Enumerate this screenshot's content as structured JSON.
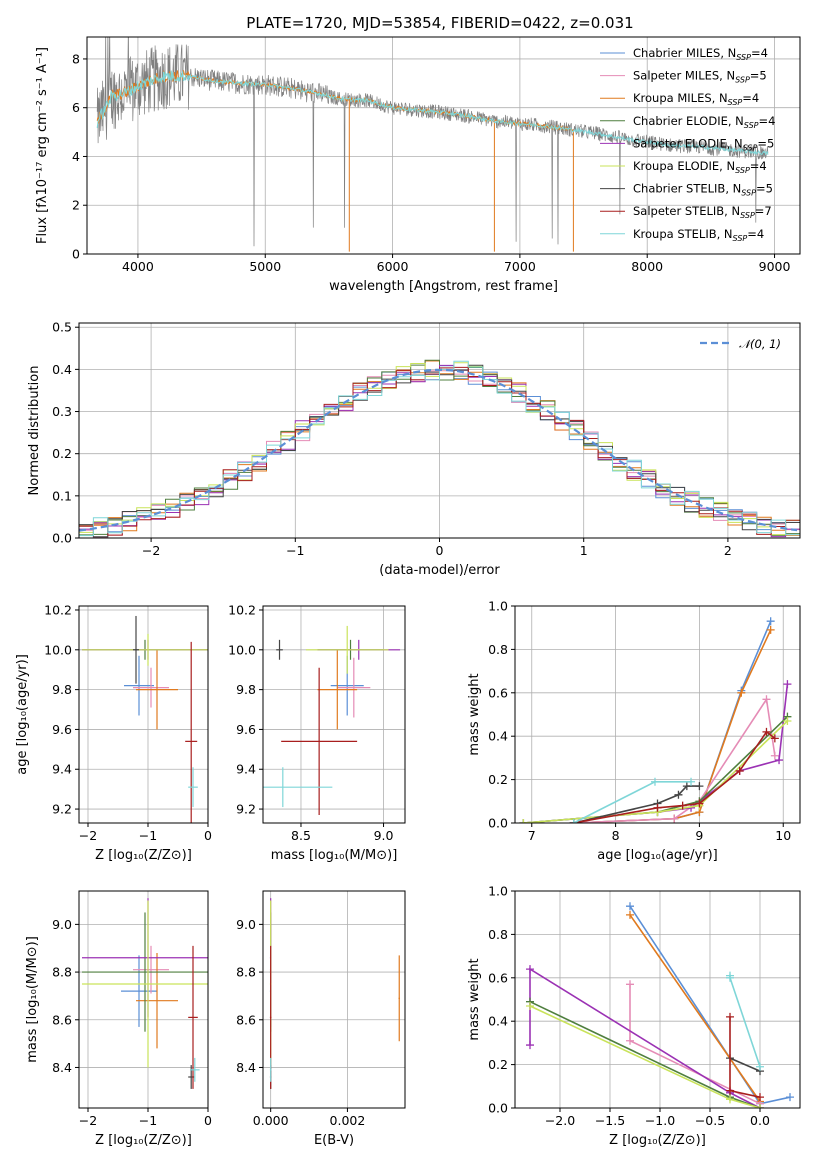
{
  "figure_title": "PLATE=1720, MJD=53854, FIBERID=0422, z=0.031",
  "colors": {
    "Chabrier MILES": "#5b8fd6",
    "Salpeter MILES": "#e58cb6",
    "Kroupa MILES": "#e07a1f",
    "Chabrier ELODIE": "#4f7f3f",
    "Salpeter ELODIE": "#9b32b4",
    "Kroupa ELODIE": "#c9e35a",
    "Chabrier STELIB": "#454545",
    "Salpeter STELIB": "#a81e1e",
    "Kroupa STELIB": "#7fd6d8",
    "data": "#808080",
    "normal": "#5b8fd6"
  },
  "chart_data": [
    {
      "id": "spectrum",
      "type": "line",
      "title": "PLATE=1720, MJD=53854, FIBERID=0422, z=0.031",
      "xlabel": "wavelength [Angstrom, rest frame]",
      "ylabel": "Flux [fλ10⁻¹⁷ erg cm⁻² s⁻¹ A⁻¹]",
      "xlim": [
        3600,
        9200
      ],
      "ylim": [
        0,
        8.9
      ],
      "xticks": [
        4000,
        5000,
        6000,
        7000,
        8000,
        9000
      ],
      "yticks": [
        0,
        2,
        4,
        6,
        8
      ],
      "legend_position": "top-right",
      "legend": [
        {
          "name": "Chabrier MILES",
          "nssp": "4"
        },
        {
          "name": "Salpeter MILES",
          "nssp": "5"
        },
        {
          "name": "Kroupa MILES",
          "nssp": "4"
        },
        {
          "name": "Chabrier ELODIE",
          "nssp": "4"
        },
        {
          "name": "Salpeter ELODIE",
          "nssp": "5"
        },
        {
          "name": "Kroupa ELODIE",
          "nssp": "4"
        },
        {
          "name": "Chabrier STELIB",
          "nssp": "5"
        },
        {
          "name": "Salpeter STELIB",
          "nssp": "7"
        },
        {
          "name": "Kroupa STELIB",
          "nssp": "4"
        }
      ],
      "data_continuum": [
        [
          3680,
          5.4
        ],
        [
          3800,
          6.5
        ],
        [
          3900,
          6.6
        ],
        [
          4000,
          6.9
        ],
        [
          4200,
          7.3
        ],
        [
          4400,
          7.3
        ],
        [
          4600,
          7.1
        ],
        [
          4800,
          7.0
        ],
        [
          5000,
          6.95
        ],
        [
          5200,
          6.8
        ],
        [
          5400,
          6.6
        ],
        [
          5600,
          6.35
        ],
        [
          5800,
          6.3
        ],
        [
          6000,
          6.0
        ],
        [
          6200,
          5.9
        ],
        [
          6400,
          5.8
        ],
        [
          6600,
          5.65
        ],
        [
          6800,
          5.45
        ],
        [
          7000,
          5.35
        ],
        [
          7200,
          5.25
        ],
        [
          7400,
          5.1
        ],
        [
          7600,
          4.95
        ],
        [
          7800,
          4.75
        ],
        [
          8000,
          4.6
        ],
        [
          8200,
          4.45
        ],
        [
          8400,
          4.4
        ],
        [
          8600,
          4.3
        ],
        [
          8800,
          4.2
        ],
        [
          9000,
          4.1
        ]
      ],
      "model_segments": [
        {
          "series": "Kroupa MILES",
          "xrange": [
            3680,
            7420
          ]
        },
        {
          "series": "Kroupa STELIB",
          "xrange": [
            3680,
            8950
          ]
        }
      ]
    },
    {
      "id": "residuals",
      "type": "bar",
      "xlabel": "(data-model)/error",
      "ylabel": "Normed distribution",
      "xlim": [
        -2.5,
        2.5
      ],
      "ylim": [
        0,
        0.51
      ],
      "xticks": [
        -2,
        -1,
        0,
        1,
        2
      ],
      "yticks": [
        0.0,
        0.1,
        0.2,
        0.3,
        0.4,
        0.5
      ],
      "legend": [
        "𝒩(0, 1)"
      ],
      "legend_position": "top-right",
      "bin_width": 0.1
    },
    {
      "id": "age-vs-Z",
      "type": "scatter",
      "xlabel": "Z [log₁₀(Z/Z⊙)]",
      "ylabel": "age  [log₁₀(age/yr)]",
      "xlim": [
        -2.15,
        0.0
      ],
      "ylim": [
        9.13,
        10.22
      ],
      "xticks": [
        -2,
        -1,
        0
      ],
      "yticks": [
        9.2,
        9.4,
        9.6,
        9.8,
        10.0,
        10.2
      ],
      "points": [
        {
          "series": "Chabrier MILES",
          "x": -1.15,
          "y": 9.82,
          "xerr": 0.25,
          "yerr": 0.15
        },
        {
          "series": "Salpeter MILES",
          "x": -0.95,
          "y": 9.81,
          "xerr": 0.3,
          "yerr": 0.1
        },
        {
          "series": "Kroupa MILES",
          "x": -0.85,
          "y": 9.8,
          "xerr": 0.35,
          "yerr": 0.2
        },
        {
          "series": "Chabrier ELODIE",
          "x": -1.05,
          "y": 10.0,
          "xerr": 1.05,
          "yerr": 0.05
        },
        {
          "series": "Salpeter ELODIE",
          "x": -1.0,
          "y": 10.0,
          "xerr": 1.1,
          "yerr": 0.05
        },
        {
          "series": "Kroupa ELODIE",
          "x": -1.0,
          "y": 10.0,
          "xerr": 1.1,
          "yerr": 0.08
        },
        {
          "series": "Chabrier STELIB",
          "x": -1.2,
          "y": 10.0,
          "xerr": 0.05,
          "yerr": 0.17
        },
        {
          "series": "Salpeter STELIB",
          "x": -0.28,
          "y": 9.54,
          "xerr": 0.1,
          "yerr": 0.5
        },
        {
          "series": "Kroupa STELIB",
          "x": -0.25,
          "y": 9.31,
          "xerr": 0.08,
          "yerr": 0.1
        }
      ]
    },
    {
      "id": "age-vs-mass",
      "type": "scatter",
      "xlabel": "mass [log₁₀(M/M⊙)]",
      "ylabel": "",
      "xlim": [
        8.27,
        9.13
      ],
      "ylim": [
        9.13,
        10.22
      ],
      "xticks": [
        8.5,
        9.0
      ],
      "yticks": [
        9.2,
        9.4,
        9.6,
        9.8,
        10.0,
        10.2
      ],
      "points": [
        {
          "series": "Chabrier MILES",
          "x": 8.78,
          "y": 9.82,
          "xerr": 0.1,
          "yerr": 0.15
        },
        {
          "series": "Salpeter MILES",
          "x": 8.82,
          "y": 9.81,
          "xerr": 0.1,
          "yerr": 0.15
        },
        {
          "series": "Kroupa MILES",
          "x": 8.72,
          "y": 9.8,
          "xerr": 0.12,
          "yerr": 0.2
        },
        {
          "series": "Chabrier ELODIE",
          "x": 8.8,
          "y": 10.0,
          "xerr": 0.2,
          "yerr": 0.05
        },
        {
          "series": "Salpeter ELODIE",
          "x": 8.85,
          "y": 10.0,
          "xerr": 0.25,
          "yerr": 0.05
        },
        {
          "series": "Kroupa ELODIE",
          "x": 8.78,
          "y": 10.0,
          "xerr": 0.25,
          "yerr": 0.12
        },
        {
          "series": "Chabrier STELIB",
          "x": 8.37,
          "y": 10.0,
          "xerr": 0.02,
          "yerr": 0.05
        },
        {
          "series": "Salpeter STELIB",
          "x": 8.61,
          "y": 9.54,
          "xerr": 0.23,
          "yerr": 0.37
        },
        {
          "series": "Kroupa STELIB",
          "x": 8.39,
          "y": 9.31,
          "xerr": 0.3,
          "yerr": 0.1
        }
      ]
    },
    {
      "id": "weight-vs-age",
      "type": "line",
      "xlabel": "age  [log₁₀(age/yr)]",
      "ylabel": "mass weight",
      "xlim": [
        6.8,
        10.2
      ],
      "ylim": [
        0,
        1.0
      ],
      "xticks": [
        7,
        8,
        9,
        10
      ],
      "yticks": [
        0.0,
        0.2,
        0.4,
        0.6,
        0.8,
        1.0
      ],
      "series": [
        {
          "name": "Chabrier MILES",
          "x": [
            7.5,
            8.7,
            9.0,
            9.5,
            9.85
          ],
          "y": [
            0.0,
            0.02,
            0.05,
            0.61,
            0.93
          ]
        },
        {
          "name": "Kroupa MILES",
          "x": [
            7.5,
            8.7,
            9.0,
            9.5,
            9.85
          ],
          "y": [
            0.0,
            0.02,
            0.05,
            0.6,
            0.89
          ]
        },
        {
          "name": "Salpeter MILES",
          "x": [
            7.5,
            8.7,
            9.0,
            9.8,
            9.9
          ],
          "y": [
            0.0,
            0.02,
            0.1,
            0.57,
            0.31
          ]
        },
        {
          "name": "Salpeter ELODIE",
          "x": [
            6.9,
            8.5,
            8.9,
            9.48,
            9.95,
            10.05
          ],
          "y": [
            0.0,
            0.05,
            0.07,
            0.24,
            0.29,
            0.64
          ]
        },
        {
          "name": "Chabrier ELODIE",
          "x": [
            6.9,
            8.5,
            9.0,
            10.05
          ],
          "y": [
            0.0,
            0.05,
            0.1,
            0.49
          ]
        },
        {
          "name": "Kroupa ELODIE",
          "x": [
            6.9,
            8.5,
            9.0,
            10.05
          ],
          "y": [
            0.0,
            0.05,
            0.08,
            0.47
          ]
        },
        {
          "name": "Chabrier STELIB",
          "x": [
            7.5,
            8.5,
            8.75,
            8.85,
            9.0
          ],
          "y": [
            0.0,
            0.09,
            0.13,
            0.17,
            0.17
          ]
        },
        {
          "name": "Salpeter STELIB",
          "x": [
            7.5,
            8.5,
            8.8,
            9.0,
            9.48,
            9.8,
            9.9
          ],
          "y": [
            0.0,
            0.07,
            0.08,
            0.09,
            0.24,
            0.42,
            0.39
          ]
        },
        {
          "name": "Kroupa STELIB",
          "x": [
            7.5,
            8.47,
            8.9
          ],
          "y": [
            0.0,
            0.19,
            0.19
          ]
        }
      ]
    },
    {
      "id": "mass-vs-Z",
      "type": "scatter",
      "xlabel": "Z [log₁₀(Z/Z⊙)]",
      "ylabel": "mass [log₁₀(M/M⊙)]",
      "xlim": [
        -2.15,
        0.0
      ],
      "ylim": [
        8.23,
        9.14
      ],
      "xticks": [
        -2,
        -1,
        0
      ],
      "yticks": [
        8.4,
        8.6,
        8.8,
        9.0
      ],
      "points": [
        {
          "series": "Chabrier MILES",
          "x": -1.15,
          "y": 8.72,
          "xerr": 0.3,
          "yerr": 0.15
        },
        {
          "series": "Salpeter MILES",
          "x": -0.95,
          "y": 8.81,
          "xerr": 0.3,
          "yerr": 0.1
        },
        {
          "series": "Kroupa MILES",
          "x": -0.85,
          "y": 8.68,
          "xerr": 0.35,
          "yerr": 0.2
        },
        {
          "series": "Chabrier ELODIE",
          "x": -1.05,
          "y": 8.8,
          "xerr": 1.05,
          "yerr": 0.25
        },
        {
          "series": "Salpeter ELODIE",
          "x": -1.0,
          "y": 8.86,
          "xerr": 1.1,
          "yerr": 0.25
        },
        {
          "series": "Kroupa ELODIE",
          "x": -1.0,
          "y": 8.75,
          "xerr": 1.1,
          "yerr": 0.35
        },
        {
          "series": "Chabrier STELIB",
          "x": -0.28,
          "y": 8.36,
          "xerr": 0.05,
          "yerr": 0.05
        },
        {
          "series": "Salpeter STELIB",
          "x": -0.25,
          "y": 8.61,
          "xerr": 0.08,
          "yerr": 0.3
        },
        {
          "series": "Kroupa STELIB",
          "x": -0.22,
          "y": 8.39,
          "xerr": 0.08,
          "yerr": 0.05
        }
      ]
    },
    {
      "id": "mass-vs-EBV",
      "type": "scatter",
      "xlabel": "E(B-V)",
      "ylabel": "",
      "xlim": [
        -0.0002,
        0.0035
      ],
      "ylim": [
        8.23,
        9.14
      ],
      "xticks": [
        0.0,
        0.002
      ],
      "yticks": [
        8.4,
        8.6,
        8.8,
        9.0
      ],
      "points": [
        {
          "series": "Chabrier MILES",
          "x": 0.0,
          "y": 8.72,
          "xerr": 2e-05,
          "yerr": 0.15
        },
        {
          "series": "Salpeter MILES",
          "x": 0.0,
          "y": 8.81,
          "xerr": 2e-05,
          "yerr": 0.1
        },
        {
          "series": "Kroupa MILES",
          "x": 0.00335,
          "y": 8.69,
          "xerr": 2e-05,
          "yerr": 0.18
        },
        {
          "series": "Chabrier ELODIE",
          "x": 0.0,
          "y": 8.8,
          "xerr": 2e-05,
          "yerr": 0.25
        },
        {
          "series": "Salpeter ELODIE",
          "x": 0.0,
          "y": 8.86,
          "xerr": 2e-05,
          "yerr": 0.25
        },
        {
          "series": "Kroupa ELODIE",
          "x": 0.0,
          "y": 8.75,
          "xerr": 2e-05,
          "yerr": 0.35
        },
        {
          "series": "Chabrier STELIB",
          "x": 0.0,
          "y": 8.36,
          "xerr": 2e-05,
          "yerr": 0.05
        },
        {
          "series": "Salpeter STELIB",
          "x": 0.0,
          "y": 8.61,
          "xerr": 2e-05,
          "yerr": 0.3
        },
        {
          "series": "Kroupa STELIB",
          "x": 0.0,
          "y": 8.39,
          "xerr": 2e-05,
          "yerr": 0.05
        }
      ]
    },
    {
      "id": "weight-vs-Z",
      "type": "line",
      "xlabel": "Z [log₁₀(Z/Z⊙)]",
      "ylabel": "mass weight",
      "xlim": [
        -2.45,
        0.4
      ],
      "ylim": [
        0,
        1.0
      ],
      "xticks": [
        -2.0,
        -1.5,
        -1.0,
        -0.5,
        0.0,
        0.5
      ],
      "yticks": [
        0.0,
        0.2,
        0.4,
        0.6,
        0.8,
        1.0
      ],
      "series": [
        {
          "name": "Chabrier MILES",
          "x": [
            -1.3,
            0.0,
            0.3
          ],
          "y": [
            0.93,
            0.02,
            0.05
          ]
        },
        {
          "name": "Kroupa MILES",
          "x": [
            -1.3,
            0.0
          ],
          "y": [
            0.89,
            0.03
          ]
        },
        {
          "name": "Salpeter MILES",
          "x": [
            -1.3,
            -1.3,
            0.0
          ],
          "y": [
            0.57,
            0.31,
            0.02
          ]
        },
        {
          "name": "Salpeter ELODIE",
          "x": [
            -2.3,
            -2.3,
            -0.3,
            0.0
          ],
          "y": [
            0.29,
            0.64,
            0.07,
            0.0
          ]
        },
        {
          "name": "Chabrier ELODIE",
          "x": [
            -2.3,
            -0.3,
            0.0
          ],
          "y": [
            0.49,
            0.05,
            0.0
          ]
        },
        {
          "name": "Kroupa ELODIE",
          "x": [
            -2.3,
            -0.3,
            0.0
          ],
          "y": [
            0.47,
            0.04,
            0.0
          ]
        },
        {
          "name": "Chabrier STELIB",
          "x": [
            -0.3,
            0.0
          ],
          "y": [
            0.23,
            0.17
          ]
        },
        {
          "name": "Salpeter STELIB",
          "x": [
            -0.3,
            -0.3,
            0.0
          ],
          "y": [
            0.42,
            0.08,
            0.05
          ]
        },
        {
          "name": "Kroupa STELIB",
          "x": [
            -0.3,
            -0.3,
            0.0
          ],
          "y": [
            0.61,
            0.6,
            0.19
          ]
        }
      ]
    }
  ]
}
